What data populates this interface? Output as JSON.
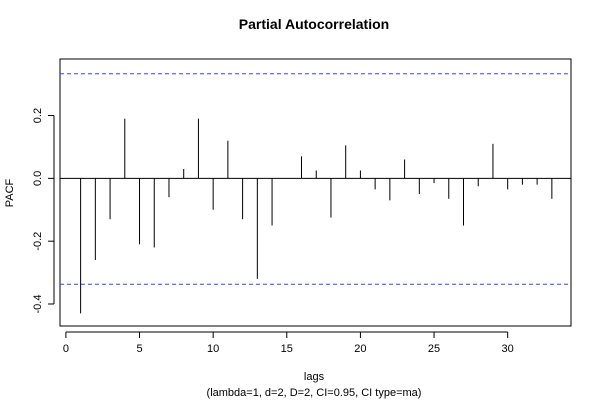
{
  "chart_data": {
    "type": "bar",
    "title": "Partial Autocorrelation",
    "xlabel": "lags",
    "subtitle": "(lambda=1, d=2, D=2, CI=0.95, CI type=ma)",
    "ylabel": "PACF",
    "xlim": [
      -0.4,
      34.3
    ],
    "ylim": [
      -0.47,
      0.38
    ],
    "x_ticks": [
      0,
      5,
      10,
      15,
      20,
      25,
      30
    ],
    "y_ticks": [
      -0.4,
      -0.2,
      0.0,
      0.2
    ],
    "y_tick_labels": [
      "-0.4",
      "-0.2",
      "0.0",
      "0.2"
    ],
    "confidence_bounds": [
      0.333,
      -0.337
    ],
    "confidence_color": "#4040ff",
    "bar_color": "#000000",
    "lags": [
      1,
      2,
      3,
      4,
      5,
      6,
      7,
      8,
      9,
      10,
      11,
      12,
      13,
      14,
      15,
      16,
      17,
      18,
      19,
      20,
      21,
      22,
      23,
      24,
      25,
      26,
      27,
      28,
      29,
      30,
      31,
      32,
      33
    ],
    "values": [
      -0.43,
      -0.26,
      -0.13,
      0.19,
      -0.21,
      -0.22,
      -0.06,
      0.03,
      0.19,
      -0.1,
      0.12,
      -0.13,
      -0.32,
      -0.15,
      0.0,
      0.07,
      0.025,
      -0.125,
      0.105,
      0.025,
      -0.035,
      -0.07,
      0.06,
      -0.05,
      -0.015,
      -0.065,
      -0.15,
      -0.025,
      0.11,
      -0.035,
      -0.02,
      -0.02,
      -0.065
    ],
    "grid": false,
    "legend": "none"
  }
}
